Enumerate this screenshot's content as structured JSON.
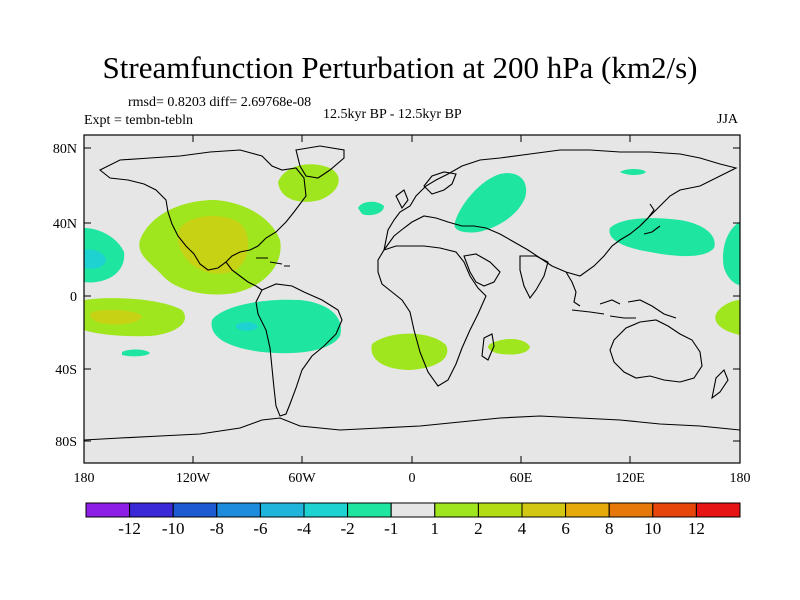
{
  "title": "Streamfunction Perturbation at 200 hPa (km2/s)",
  "stats": "rmsd= 0.8203 diff= 2.69768e-08",
  "experiment": "Expt = tembn-tebln",
  "comparison": "12.5kyr BP - 12.5kyr BP",
  "season": "JJA",
  "axes": {
    "lon_labels": [
      "180",
      "120W",
      "60W",
      "0",
      "60E",
      "120E",
      "180"
    ],
    "lat_labels": [
      "80N",
      "40N",
      "0",
      "40S",
      "80S"
    ]
  },
  "colorbar": {
    "colors": [
      "#8c1ee6",
      "#3b28d6",
      "#1e5ad2",
      "#1e8cdc",
      "#1eb4dc",
      "#1ed2d2",
      "#1ee6a0",
      "#e6e6e6",
      "#a0e61e",
      "#b4dc14",
      "#d2c814",
      "#e6aa0a",
      "#e6780a",
      "#e6460a",
      "#e61414"
    ],
    "labels": [
      "-12",
      "-10",
      "-8",
      "-6",
      "-4",
      "-2",
      "-1",
      "1",
      "2",
      "4",
      "6",
      "8",
      "10",
      "12"
    ]
  },
  "background_color": "#e6e6e6"
}
